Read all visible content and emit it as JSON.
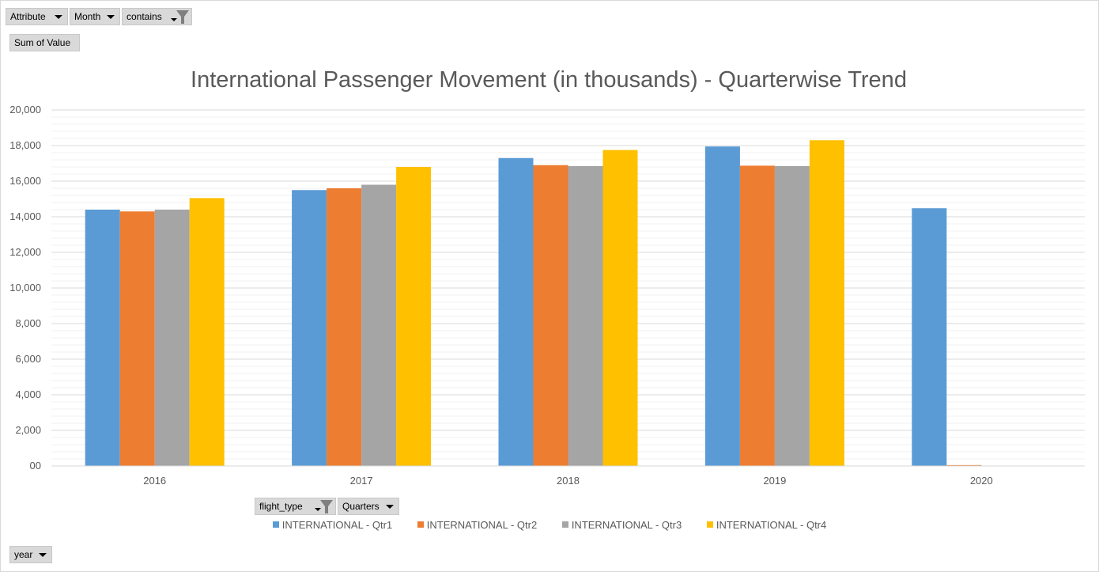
{
  "field_buttons": {
    "attribute": "Attribute",
    "month": "Month",
    "contains": "contains",
    "sum_of_value": "Sum of Value",
    "flight_type": "flight_type",
    "quarters": "Quarters",
    "year": "year"
  },
  "chart_data": {
    "type": "bar",
    "title": "International Passenger Movement (in thousands) - Quarterwise Trend",
    "categories": [
      "2016",
      "2017",
      "2018",
      "2019",
      "2020"
    ],
    "series": [
      {
        "name": "INTERNATIONAL - Qtr1",
        "color": "#5b9bd5",
        "values": [
          14400,
          15500,
          17300,
          17950,
          14480
        ]
      },
      {
        "name": "INTERNATIONAL - Qtr2",
        "color": "#ed7d31",
        "values": [
          14300,
          15600,
          16900,
          16870,
          50
        ]
      },
      {
        "name": "INTERNATIONAL - Qtr3",
        "color": "#a5a5a5",
        "values": [
          14400,
          15800,
          16850,
          16850,
          null
        ]
      },
      {
        "name": "INTERNATIONAL - Qtr4",
        "color": "#ffc000",
        "values": [
          15050,
          16800,
          17750,
          18300,
          null
        ]
      }
    ],
    "ylim": [
      0,
      20000
    ],
    "yticks": [
      "00",
      "2,000",
      "4,000",
      "6,000",
      "8,000",
      "10,000",
      "12,000",
      "14,000",
      "16,000",
      "18,000",
      "20,000"
    ],
    "grid": true,
    "legend_position": "bottom"
  }
}
